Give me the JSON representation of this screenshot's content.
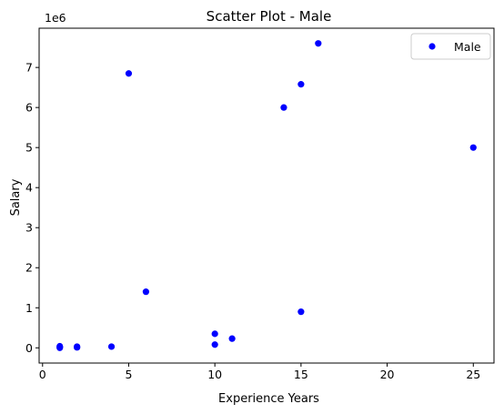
{
  "chart_data": {
    "type": "scatter",
    "title": "Scatter Plot - Male",
    "xlabel": "Experience Years",
    "ylabel": "Salary",
    "y_offset_label": "1e6",
    "xlim": [
      -0.2,
      26.2
    ],
    "ylim": [
      -0.38,
      7.98
    ],
    "x_ticks": [
      0,
      5,
      10,
      15,
      20,
      25
    ],
    "y_ticks": [
      0,
      1,
      2,
      3,
      4,
      5,
      6,
      7
    ],
    "y_unit_note": "y values in units of 1e6",
    "grid": false,
    "legend_position": "top-right",
    "series": [
      {
        "name": "Male",
        "color": "#0000ff",
        "points": [
          {
            "x": 1,
            "y": 0.04
          },
          {
            "x": 1,
            "y": 0.02
          },
          {
            "x": 1,
            "y": 0.0
          },
          {
            "x": 2,
            "y": 0.03
          },
          {
            "x": 2,
            "y": 0.01
          },
          {
            "x": 4,
            "y": 0.03
          },
          {
            "x": 5,
            "y": 6.85
          },
          {
            "x": 6,
            "y": 1.4
          },
          {
            "x": 10,
            "y": 0.35
          },
          {
            "x": 10,
            "y": 0.08
          },
          {
            "x": 11,
            "y": 0.23
          },
          {
            "x": 14,
            "y": 6.0
          },
          {
            "x": 15,
            "y": 6.58
          },
          {
            "x": 15,
            "y": 0.9
          },
          {
            "x": 16,
            "y": 7.6
          },
          {
            "x": 25,
            "y": 5.0
          }
        ]
      }
    ]
  }
}
